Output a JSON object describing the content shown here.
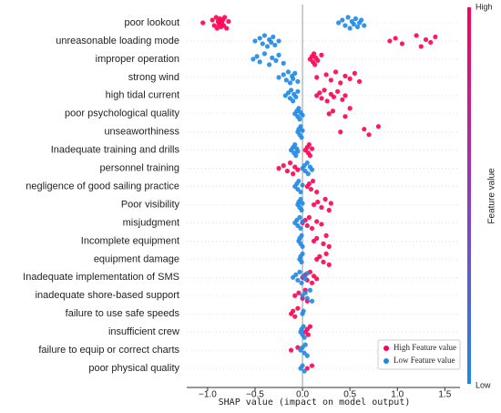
{
  "chart_data": {
    "type": "beeswarm",
    "xlabel": "SHAP value (impact on model output)",
    "categories": [
      "poor lookout",
      "unreasonable loading mode",
      "improper operation",
      "strong wind",
      "high tidal current",
      "poor psychological quality",
      "unseaworthiness",
      "Inadequate training and drills",
      "personnel training",
      "negligence of good sailing practice",
      "Poor visibility",
      "misjudgment",
      "Incomplete equipment",
      "equipment damage",
      "Inadequate implementation of SMS",
      "inadequate shore-based support",
      "failure to use safe speeds",
      "insufficient crew",
      "failure to equip or correct charts",
      "poor physical quality"
    ],
    "series": [
      {
        "name": "High Feature value",
        "color": "#ff0052",
        "values": [
          [
            -1.05,
            -0.95,
            -0.93,
            -0.91,
            -0.9,
            -0.89,
            -0.88,
            -0.87,
            -0.86,
            -0.85,
            -0.84,
            -0.83,
            -0.82,
            -0.8,
            -0.78
          ],
          [
            0.92,
            0.98,
            1.05,
            1.2,
            1.25,
            1.3,
            1.35,
            1.4
          ],
          [
            0.08,
            0.1,
            0.11,
            0.12,
            0.13,
            0.14,
            0.16,
            0.2
          ],
          [
            0.15,
            0.25,
            0.3,
            0.35,
            0.4,
            0.45,
            0.5,
            0.55,
            0.6
          ],
          [
            0.15,
            0.18,
            0.2,
            0.23,
            0.26,
            0.3,
            0.33,
            0.37,
            0.42,
            0.45
          ],
          [
            0.28,
            0.32,
            0.45,
            0.5
          ],
          [
            0.4,
            0.65,
            0.7,
            0.8
          ],
          [
            0.03,
            0.05,
            0.06,
            0.07,
            0.08,
            0.1
          ],
          [
            -0.25,
            -0.2,
            -0.16,
            -0.13,
            -0.1,
            -0.08,
            -0.05
          ],
          [
            0.05,
            0.07,
            0.09,
            0.11,
            0.15
          ],
          [
            0.12,
            0.16,
            0.2,
            0.24,
            0.28,
            0.3
          ],
          [
            0.0,
            0.03,
            0.05,
            0.07,
            0.1,
            0.15,
            0.2
          ],
          [
            0.12,
            0.15,
            0.22,
            0.25,
            0.28
          ],
          [
            0.15,
            0.18,
            0.22,
            0.25,
            0.28
          ],
          [
            0.0,
            0.03,
            0.05,
            0.08,
            0.1,
            0.12,
            0.15
          ],
          [
            -0.08,
            -0.04,
            0.0,
            0.03,
            0.05
          ],
          [
            -0.12,
            -0.1,
            -0.08,
            -0.05
          ],
          [
            0.03,
            0.05,
            0.06,
            0.08
          ],
          [
            -0.12,
            -0.05
          ],
          [
            0.05,
            0.1
          ]
        ]
      },
      {
        "name": "Low Feature value",
        "color": "#1e88e5",
        "values": [
          [
            0.38,
            0.42,
            0.45,
            0.48,
            0.5,
            0.52,
            0.54,
            0.56,
            0.58,
            0.6,
            0.62,
            0.65
          ],
          [
            -0.5,
            -0.45,
            -0.42,
            -0.4,
            -0.37,
            -0.35,
            -0.33,
            -0.31,
            -0.29,
            -0.25
          ],
          [
            -0.52,
            -0.48,
            -0.45,
            -0.4,
            -0.35,
            -0.32,
            -0.28,
            -0.25,
            -0.2
          ],
          [
            -0.25,
            -0.2,
            -0.17,
            -0.15,
            -0.13,
            -0.11,
            -0.1,
            -0.08,
            -0.05
          ],
          [
            -0.18,
            -0.15,
            -0.13,
            -0.12,
            -0.1,
            -0.09,
            -0.07,
            -0.05
          ],
          [
            -0.08,
            -0.06,
            -0.05,
            -0.04,
            -0.03,
            -0.02,
            0.0
          ],
          [
            -0.05,
            -0.04,
            -0.03,
            -0.02,
            -0.01,
            0.0
          ],
          [
            -0.12,
            -0.1,
            -0.09,
            -0.08,
            -0.07,
            -0.06,
            -0.05
          ],
          [
            0.0,
            0.02,
            0.03,
            0.05,
            0.06,
            0.08,
            0.1
          ],
          [
            -0.08,
            -0.06,
            -0.05,
            -0.04,
            -0.02,
            0.0
          ],
          [
            -0.05,
            -0.04,
            -0.03,
            -0.02,
            -0.01,
            0.0
          ],
          [
            -0.08,
            -0.06,
            -0.05,
            -0.03,
            -0.02,
            0.0
          ],
          [
            -0.04,
            -0.03,
            -0.02,
            -0.01,
            0.0
          ],
          [
            -0.03,
            -0.02,
            -0.01,
            0.0
          ],
          [
            -0.1,
            -0.07,
            -0.05,
            -0.03,
            -0.01,
            0.01,
            0.03,
            0.05
          ],
          [
            0.0,
            0.03,
            0.05,
            0.08,
            0.1
          ],
          [
            0.0,
            0.01
          ],
          [
            -0.02,
            -0.01,
            0.0,
            0.01,
            0.02
          ],
          [
            -0.02,
            0.0,
            0.02,
            0.03,
            0.05
          ],
          [
            -0.02,
            0.0,
            0.02
          ]
        ]
      }
    ],
    "xlim": [
      -1.22,
      1.66
    ],
    "xticks": [
      {
        "value": -1.0,
        "label": "−1.0"
      },
      {
        "value": -0.5,
        "label": "−0.5"
      },
      {
        "value": 0.0,
        "label": "0.0"
      },
      {
        "value": 0.5,
        "label": "0.5"
      },
      {
        "value": 1.0,
        "label": "1.0"
      },
      {
        "value": 1.5,
        "label": "1.5"
      }
    ],
    "colorbar": {
      "high": "High",
      "low": "Low",
      "label": "Feature value"
    },
    "legend": "lower right"
  }
}
